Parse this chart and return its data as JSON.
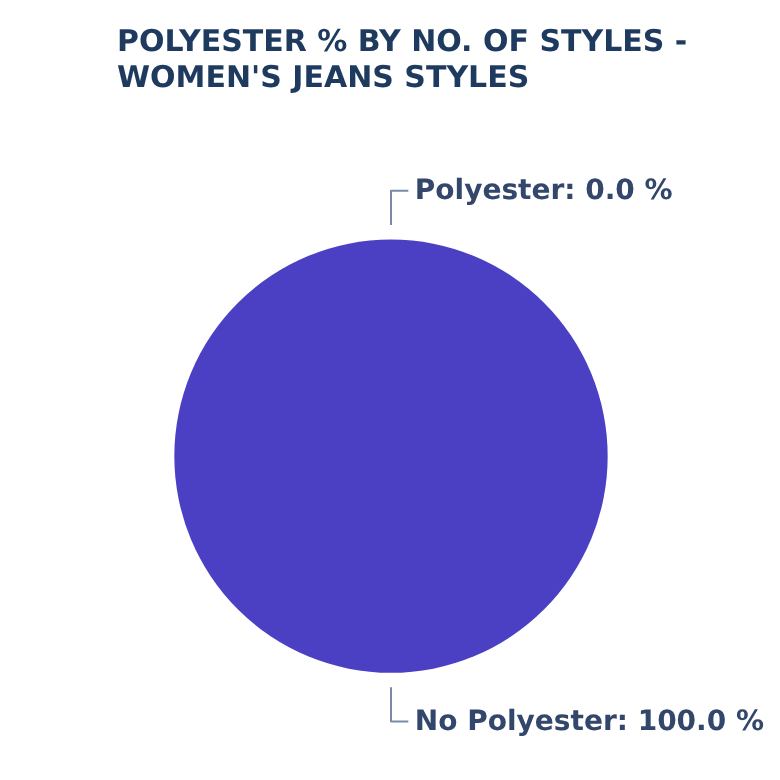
{
  "chart_data": {
    "type": "pie",
    "title": "POLYESTER % BY NO. OF STYLES - WOMEN'S JEANS STYLES",
    "categories": [
      "Polyester",
      "No Polyester"
    ],
    "values": [
      0,
      100
    ],
    "colors": [
      null,
      "#4b3fc4"
    ],
    "value_labels": [
      "0.0 %",
      "100.0 %"
    ]
  }
}
